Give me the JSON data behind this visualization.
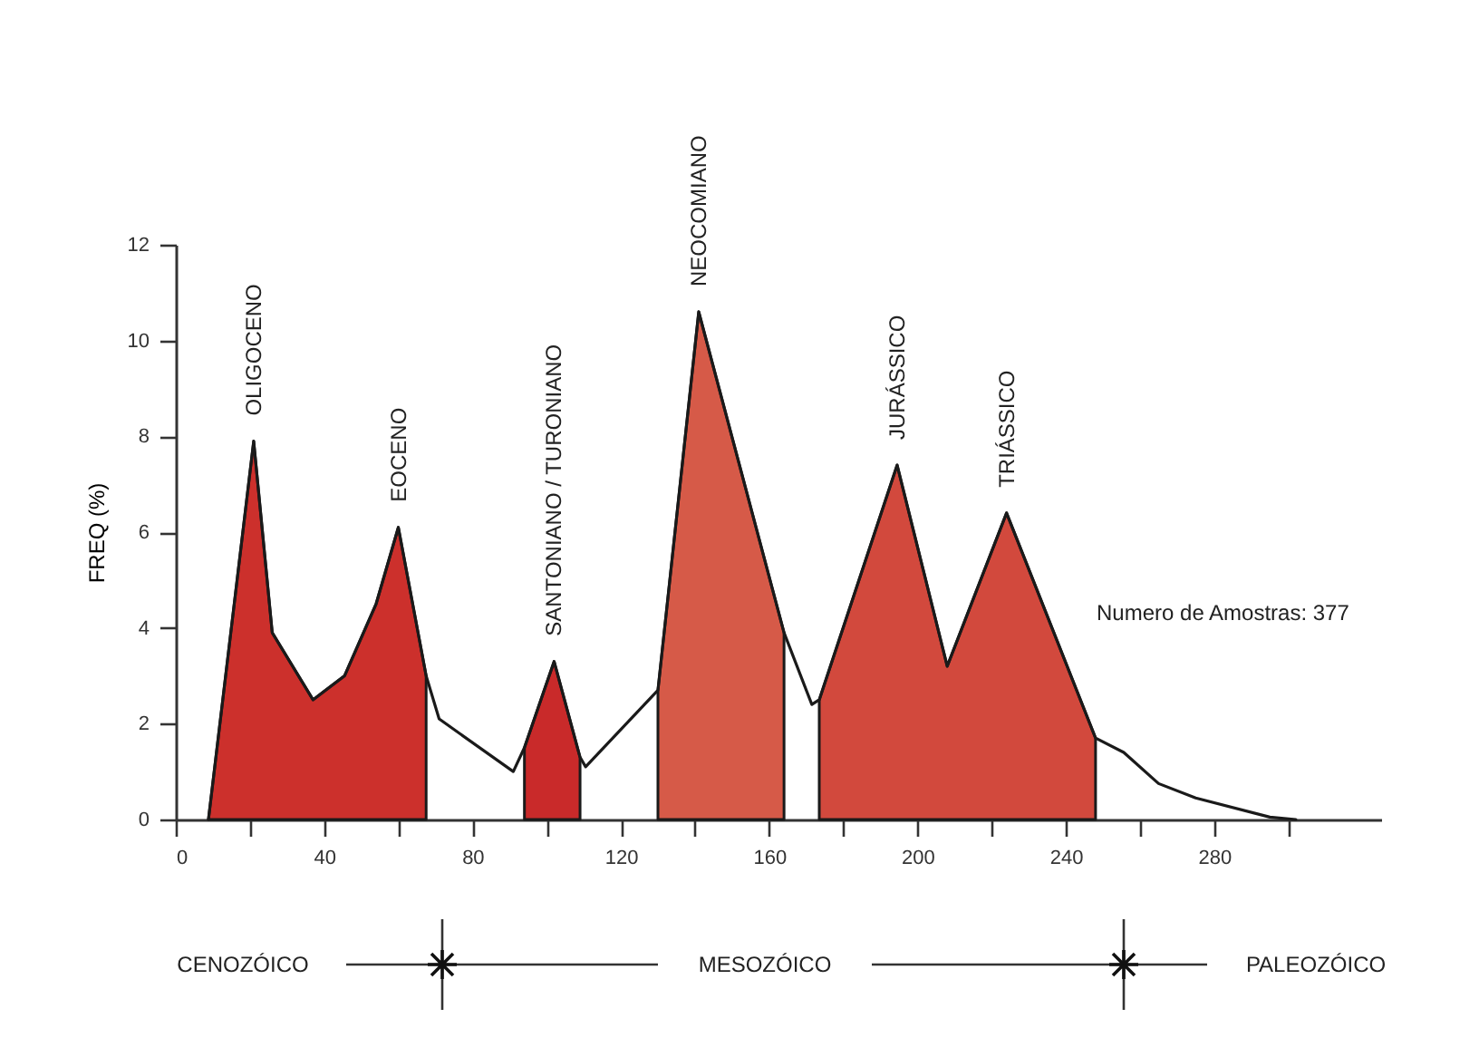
{
  "chart_data": {
    "type": "area",
    "ylabel": "FREQ (%)",
    "xlim": [
      0,
      325
    ],
    "ylim": [
      0,
      12
    ],
    "xticks": [
      0,
      {
        "value": 20,
        "label": null
      },
      40,
      {
        "value": 60,
        "label": null
      },
      80,
      {
        "value": 100,
        "label": null
      },
      120,
      {
        "value": 140,
        "label": null
      },
      160,
      {
        "value": 180,
        "label": null
      },
      200,
      {
        "value": 220,
        "label": null
      },
      240,
      {
        "value": 260,
        "label": null
      },
      280,
      {
        "value": 300,
        "label": null
      }
    ],
    "yticks": [
      0,
      2,
      4,
      6,
      8,
      10,
      12
    ],
    "series": [
      {
        "color": "#cc302c",
        "x": [
          8.8,
          21,
          26,
          37,
          45.5,
          54,
          60,
          67.5
        ],
        "values": [
          0,
          7.9,
          3.9,
          2.5,
          3.0,
          4.5,
          6.1,
          3.0
        ]
      },
      {
        "color": "#c92a2a",
        "x": [
          94,
          102,
          109
        ],
        "values": [
          1.5,
          3.3,
          1.3
        ]
      },
      {
        "color": "#d65a48",
        "x": [
          130,
          141,
          164
        ],
        "values": [
          2.7,
          10.6,
          3.9
        ]
      },
      {
        "color": "#d2493d",
        "x": [
          173.5,
          194.5,
          208,
          224,
          248
        ],
        "values": [
          2.5,
          7.4,
          3.2,
          6.4,
          1.7
        ]
      },
      {
        "type": "line",
        "color": "#1a1a1a",
        "x": [
          8.8,
          21,
          26,
          37,
          45.5,
          54,
          60,
          67.5,
          71,
          91,
          94,
          102,
          109,
          110.5,
          130,
          141,
          164,
          171.5,
          173.5,
          194.5,
          208,
          224,
          248,
          255.6,
          265,
          275,
          295,
          302
        ],
        "values": [
          0,
          7.9,
          3.9,
          2.5,
          3.0,
          4.5,
          6.1,
          3.0,
          2.1,
          1.0,
          1.5,
          3.3,
          1.3,
          1.1,
          2.7,
          10.6,
          3.9,
          2.4,
          2.5,
          7.4,
          3.2,
          6.4,
          1.7,
          1.4,
          0.75,
          0.45,
          0.05,
          0
        ]
      }
    ],
    "annotations": [
      {
        "text": "OLIGOCENO",
        "x": 21,
        "y": 7.9
      },
      {
        "text": "EOCENO",
        "x": 60,
        "y": 6.1
      },
      {
        "text": "SANTONIANO / TURONIANO",
        "x": 102,
        "y": 3.3
      },
      {
        "text": "NEOCOMIANO",
        "x": 141,
        "y": 10.6
      },
      {
        "text": "JURÁSSICO",
        "x": 194.5,
        "y": 7.4
      },
      {
        "text": "TRIÁSSICO",
        "x": 224,
        "y": 6.4
      },
      "Numero de Amostras: 377",
      "CENOZÓICO",
      "MESOZÓICO",
      "PALEOZÓICO"
    ]
  }
}
